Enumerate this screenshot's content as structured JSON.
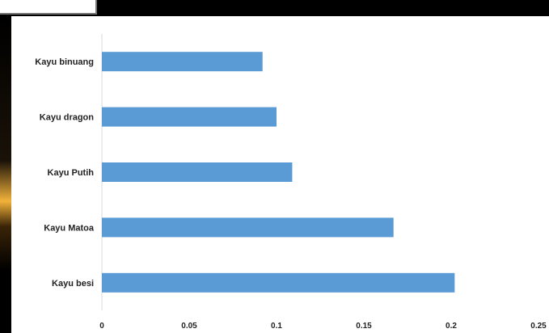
{
  "chart_data": {
    "type": "bar",
    "orientation": "horizontal",
    "categories": [
      "Kayu binuang",
      "Kayu dragon",
      "Kayu Putih",
      "Kayu Matoa",
      "Kayu besi"
    ],
    "values": [
      0.092,
      0.1,
      0.109,
      0.167,
      0.202
    ],
    "xlim": [
      0,
      0.25
    ],
    "xticks": [
      "0",
      "0.05",
      "0.1",
      "0.15",
      "0.2",
      "0.25"
    ],
    "grid": false,
    "bar_color": "#5b9bd5"
  }
}
